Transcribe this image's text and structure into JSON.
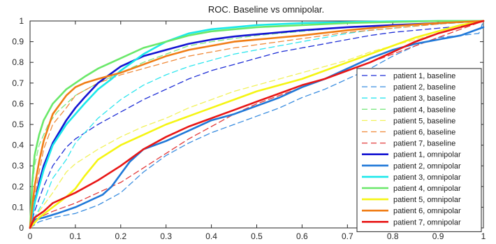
{
  "chart_data": {
    "type": "line",
    "title": "ROC. Baseline vs omnipolar.",
    "xlabel": "",
    "ylabel": "",
    "xlim": [
      0,
      1
    ],
    "ylim": [
      0,
      1
    ],
    "xticks": [
      "0",
      "0.1",
      "0.2",
      "0.3",
      "0.4",
      "0.5",
      "0.6",
      "0.7",
      "0.8",
      "0.9",
      "1"
    ],
    "yticks": [
      "0",
      "0.1",
      "0.2",
      "0.3",
      "0.4",
      "0.5",
      "0.6",
      "0.7",
      "0.8",
      "0.9",
      "1"
    ],
    "grid": false,
    "legend_position": "bottom-right",
    "series": [
      {
        "name": "patient 1, baseline",
        "color": "#1f2fd6",
        "style": "dashed",
        "x": [
          0,
          0.01,
          0.03,
          0.05,
          0.08,
          0.1,
          0.15,
          0.2,
          0.25,
          0.3,
          0.35,
          0.4,
          0.45,
          0.5,
          0.55,
          0.6,
          0.65,
          0.7,
          0.75,
          0.8,
          0.85,
          0.9,
          0.95,
          1
        ],
        "y": [
          0,
          0.08,
          0.2,
          0.3,
          0.39,
          0.43,
          0.5,
          0.56,
          0.62,
          0.67,
          0.72,
          0.76,
          0.79,
          0.82,
          0.85,
          0.87,
          0.89,
          0.91,
          0.93,
          0.945,
          0.955,
          0.965,
          0.975,
          1
        ]
      },
      {
        "name": "patient 2, baseline",
        "color": "#3a8de0",
        "style": "dashed",
        "x": [
          0,
          0.02,
          0.05,
          0.1,
          0.15,
          0.2,
          0.25,
          0.3,
          0.35,
          0.4,
          0.45,
          0.5,
          0.55,
          0.6,
          0.65,
          0.7,
          0.75,
          0.8,
          0.85,
          0.9,
          0.95,
          0.99,
          1
        ],
        "y": [
          0,
          0.03,
          0.05,
          0.07,
          0.11,
          0.17,
          0.27,
          0.35,
          0.41,
          0.46,
          0.5,
          0.54,
          0.58,
          0.63,
          0.67,
          0.72,
          0.77,
          0.83,
          0.88,
          0.92,
          0.93,
          0.94,
          1
        ]
      },
      {
        "name": "patient 3, baseline",
        "color": "#2ee6ee",
        "style": "dashed",
        "x": [
          0,
          0.01,
          0.03,
          0.05,
          0.08,
          0.1,
          0.15,
          0.2,
          0.25,
          0.3,
          0.35,
          0.4,
          0.45,
          0.5,
          0.55,
          0.6,
          0.65,
          0.7,
          0.75,
          0.8,
          0.85,
          0.9,
          0.95,
          1
        ],
        "y": [
          0,
          0.05,
          0.13,
          0.24,
          0.33,
          0.41,
          0.53,
          0.62,
          0.69,
          0.74,
          0.78,
          0.81,
          0.84,
          0.86,
          0.88,
          0.9,
          0.92,
          0.94,
          0.955,
          0.965,
          0.975,
          0.985,
          0.992,
          1
        ]
      },
      {
        "name": "patient 4, baseline",
        "color": "#7ee882",
        "style": "dashed",
        "x": [
          0,
          0.005,
          0.01,
          0.02,
          0.04,
          0.06,
          0.08,
          0.1,
          0.15,
          0.2,
          0.25,
          0.3,
          0.35,
          0.4,
          0.5,
          0.6,
          0.7,
          0.8,
          0.9,
          1
        ],
        "y": [
          0,
          0.2,
          0.3,
          0.4,
          0.5,
          0.56,
          0.6,
          0.64,
          0.7,
          0.75,
          0.8,
          0.84,
          0.88,
          0.9,
          0.93,
          0.95,
          0.97,
          0.98,
          0.99,
          1
        ]
      },
      {
        "name": "patient 5, baseline",
        "color": "#f2f25a",
        "style": "dashed",
        "x": [
          0,
          0.02,
          0.05,
          0.08,
          0.1,
          0.15,
          0.2,
          0.25,
          0.3,
          0.35,
          0.4,
          0.45,
          0.5,
          0.55,
          0.6,
          0.65,
          0.7,
          0.75,
          0.8,
          0.85,
          0.9,
          0.95,
          1
        ],
        "y": [
          0,
          0.08,
          0.17,
          0.27,
          0.31,
          0.38,
          0.44,
          0.49,
          0.53,
          0.58,
          0.62,
          0.66,
          0.69,
          0.72,
          0.75,
          0.78,
          0.81,
          0.85,
          0.88,
          0.91,
          0.94,
          0.97,
          1
        ]
      },
      {
        "name": "patient 6, baseline",
        "color": "#f08a3a",
        "style": "dashed",
        "x": [
          0,
          0.01,
          0.02,
          0.03,
          0.05,
          0.08,
          0.1,
          0.15,
          0.2,
          0.25,
          0.3,
          0.35,
          0.4,
          0.45,
          0.5,
          0.55,
          0.6,
          0.65,
          0.7,
          0.75,
          0.8,
          0.85,
          0.9,
          0.95,
          1
        ],
        "y": [
          0,
          0.15,
          0.27,
          0.38,
          0.5,
          0.58,
          0.64,
          0.7,
          0.74,
          0.77,
          0.8,
          0.83,
          0.85,
          0.87,
          0.885,
          0.9,
          0.915,
          0.93,
          0.945,
          0.955,
          0.965,
          0.975,
          0.985,
          0.993,
          1
        ]
      },
      {
        "name": "patient 7, baseline",
        "color": "#e23a3a",
        "style": "dashed",
        "x": [
          0,
          0.01,
          0.03,
          0.05,
          0.1,
          0.15,
          0.2,
          0.25,
          0.3,
          0.35,
          0.4,
          0.45,
          0.5,
          0.55,
          0.6,
          0.65,
          0.7,
          0.75,
          0.8,
          0.85,
          0.9,
          0.95,
          1
        ],
        "y": [
          0,
          0.03,
          0.06,
          0.08,
          0.12,
          0.17,
          0.22,
          0.29,
          0.36,
          0.43,
          0.49,
          0.55,
          0.6,
          0.64,
          0.68,
          0.72,
          0.76,
          0.8,
          0.84,
          0.88,
          0.92,
          0.96,
          1
        ]
      },
      {
        "name": "patient 1, omnipolar",
        "color": "#1414d2",
        "style": "solid",
        "x": [
          0,
          0.01,
          0.02,
          0.03,
          0.05,
          0.08,
          0.1,
          0.12,
          0.15,
          0.2,
          0.25,
          0.3,
          0.35,
          0.4,
          0.45,
          0.5,
          0.55,
          0.6,
          0.7,
          0.8,
          0.9,
          1
        ],
        "y": [
          0,
          0.12,
          0.22,
          0.3,
          0.41,
          0.52,
          0.58,
          0.63,
          0.7,
          0.78,
          0.83,
          0.86,
          0.89,
          0.91,
          0.925,
          0.935,
          0.945,
          0.955,
          0.97,
          0.98,
          0.99,
          1
        ]
      },
      {
        "name": "patient 2, omnipolar",
        "color": "#1f78d8",
        "style": "solid",
        "x": [
          0,
          0.01,
          0.03,
          0.06,
          0.1,
          0.13,
          0.16,
          0.18,
          0.2,
          0.22,
          0.25,
          0.3,
          0.35,
          0.4,
          0.45,
          0.5,
          0.55,
          0.6,
          0.65,
          0.7,
          0.75,
          0.8,
          0.85,
          0.9,
          0.95,
          1
        ],
        "y": [
          0,
          0.04,
          0.05,
          0.07,
          0.1,
          0.13,
          0.16,
          0.2,
          0.26,
          0.32,
          0.38,
          0.42,
          0.47,
          0.52,
          0.55,
          0.59,
          0.63,
          0.68,
          0.72,
          0.77,
          0.82,
          0.86,
          0.89,
          0.91,
          0.93,
          0.97
        ]
      },
      {
        "name": "patient 3, omnipolar",
        "color": "#1ae8ea",
        "style": "solid",
        "x": [
          0,
          0.01,
          0.02,
          0.03,
          0.05,
          0.08,
          0.1,
          0.12,
          0.15,
          0.18,
          0.2,
          0.25,
          0.3,
          0.35,
          0.4,
          0.45,
          0.5,
          0.6,
          0.7,
          0.8,
          0.9,
          1
        ],
        "y": [
          0,
          0.12,
          0.2,
          0.28,
          0.4,
          0.5,
          0.55,
          0.6,
          0.67,
          0.72,
          0.76,
          0.84,
          0.9,
          0.94,
          0.96,
          0.97,
          0.98,
          0.99,
          0.995,
          0.998,
          1,
          1
        ]
      },
      {
        "name": "patient 4, omnipolar",
        "color": "#6ae86a",
        "style": "solid",
        "x": [
          0,
          0.005,
          0.01,
          0.02,
          0.03,
          0.05,
          0.08,
          0.1,
          0.12,
          0.15,
          0.2,
          0.25,
          0.3,
          0.35,
          0.4,
          0.5,
          0.6,
          0.7,
          0.8,
          0.9,
          1
        ],
        "y": [
          0,
          0.22,
          0.35,
          0.45,
          0.52,
          0.6,
          0.67,
          0.7,
          0.73,
          0.77,
          0.82,
          0.87,
          0.9,
          0.93,
          0.95,
          0.97,
          0.98,
          0.99,
          0.995,
          1,
          1
        ]
      },
      {
        "name": "patient 5, omnipolar",
        "color": "#f5f513",
        "style": "solid",
        "x": [
          0,
          0.02,
          0.05,
          0.08,
          0.1,
          0.12,
          0.15,
          0.2,
          0.25,
          0.3,
          0.35,
          0.4,
          0.45,
          0.5,
          0.55,
          0.6,
          0.65,
          0.7,
          0.75,
          0.8,
          0.85,
          0.9,
          0.95,
          1
        ],
        "y": [
          0,
          0.05,
          0.1,
          0.15,
          0.19,
          0.25,
          0.33,
          0.4,
          0.45,
          0.5,
          0.54,
          0.58,
          0.62,
          0.66,
          0.69,
          0.72,
          0.76,
          0.8,
          0.84,
          0.88,
          0.92,
          0.95,
          0.98,
          1
        ]
      },
      {
        "name": "patient 6, omnipolar",
        "color": "#f07d15",
        "style": "solid",
        "x": [
          0,
          0.005,
          0.01,
          0.02,
          0.03,
          0.05,
          0.08,
          0.1,
          0.12,
          0.15,
          0.2,
          0.25,
          0.3,
          0.35,
          0.4,
          0.45,
          0.5,
          0.6,
          0.7,
          0.8,
          0.9,
          1
        ],
        "y": [
          0,
          0.1,
          0.2,
          0.32,
          0.42,
          0.55,
          0.64,
          0.68,
          0.7,
          0.72,
          0.75,
          0.79,
          0.83,
          0.86,
          0.88,
          0.9,
          0.91,
          0.93,
          0.955,
          0.975,
          0.99,
          1
        ]
      },
      {
        "name": "patient 7, omnipolar",
        "color": "#e81616",
        "style": "solid",
        "x": [
          0,
          0.01,
          0.03,
          0.05,
          0.1,
          0.15,
          0.2,
          0.25,
          0.3,
          0.35,
          0.4,
          0.45,
          0.5,
          0.55,
          0.6,
          0.65,
          0.7,
          0.75,
          0.8,
          0.85,
          0.9,
          0.95,
          1
        ],
        "y": [
          0,
          0.05,
          0.08,
          0.12,
          0.17,
          0.23,
          0.3,
          0.38,
          0.44,
          0.49,
          0.53,
          0.57,
          0.61,
          0.65,
          0.69,
          0.72,
          0.76,
          0.8,
          0.85,
          0.9,
          0.94,
          0.97,
          1
        ]
      }
    ]
  }
}
